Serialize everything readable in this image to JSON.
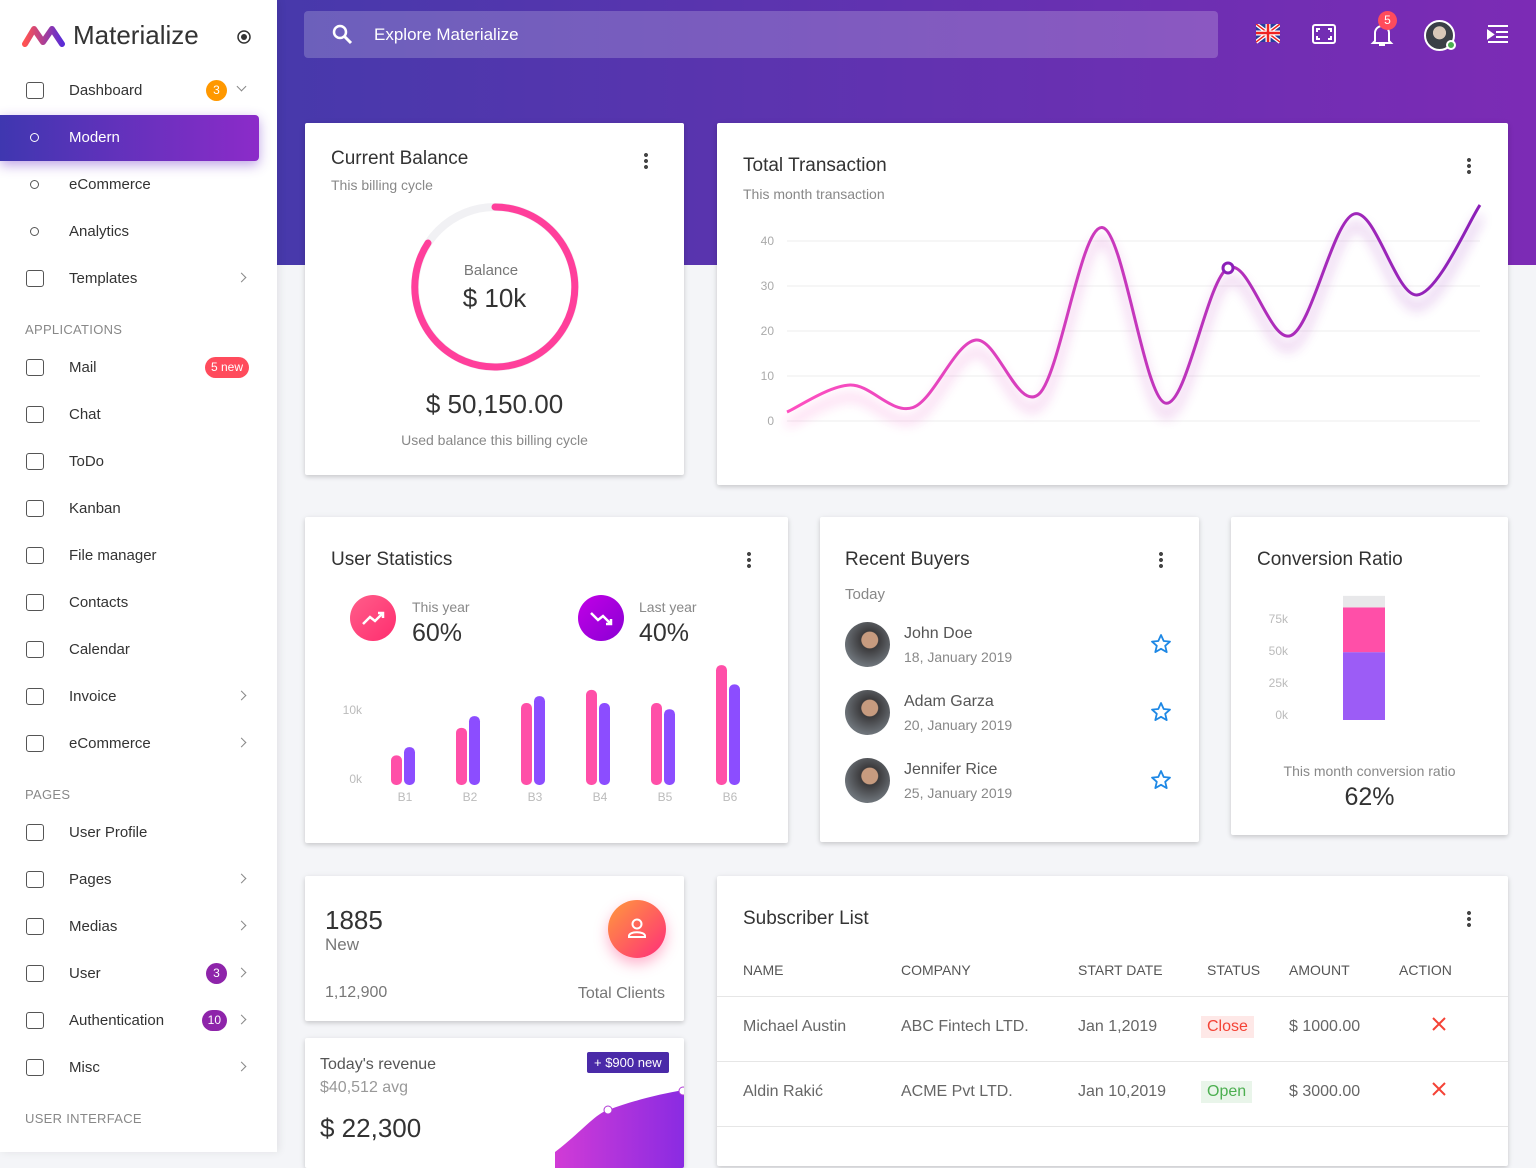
{
  "sidebar": {
    "brand": "Materialize",
    "nav": [
      {
        "label": "Dashboard",
        "badge": "3",
        "badge_color": "#ff9800",
        "arrow": "down"
      },
      {
        "label": "Modern",
        "sub": true,
        "active": true
      },
      {
        "label": "eCommerce",
        "sub": true
      },
      {
        "label": "Analytics",
        "sub": true
      },
      {
        "label": "Templates",
        "arrow": "right"
      },
      {
        "heading": "APPLICATIONS"
      },
      {
        "label": "Mail",
        "badge": "5 new",
        "badge_color": "#ff4b5c"
      },
      {
        "label": "Chat"
      },
      {
        "label": "ToDo"
      },
      {
        "label": "Kanban"
      },
      {
        "label": "File manager"
      },
      {
        "label": "Contacts"
      },
      {
        "label": "Calendar"
      },
      {
        "label": "Invoice",
        "arrow": "right"
      },
      {
        "label": "eCommerce",
        "arrow": "right"
      },
      {
        "heading": "PAGES"
      },
      {
        "label": "User Profile"
      },
      {
        "label": "Pages",
        "arrow": "right"
      },
      {
        "label": "Medias",
        "arrow": "right"
      },
      {
        "label": "User",
        "badge": "3",
        "badge_color": "#8e24aa",
        "arrow": "right"
      },
      {
        "label": "Authentication",
        "badge": "10",
        "badge_color": "#8e24aa",
        "arrow": "right"
      },
      {
        "label": "Misc",
        "arrow": "right"
      },
      {
        "heading": "USER INTERFACE"
      }
    ]
  },
  "header": {
    "search": "Explore Materialize",
    "notifications": "5"
  },
  "balance": {
    "title": "Current Balance",
    "subtitle": "This billing cycle",
    "gauge_label": "Balance",
    "gauge_value": "$ 10k",
    "amount": "$ 50,150.00",
    "caption": "Used balance this billing cycle"
  },
  "transaction": {
    "title": "Total Transaction",
    "subtitle": "This month transaction",
    "values": [
      2,
      8,
      3,
      18,
      6,
      43,
      4,
      34,
      19,
      46,
      28,
      48
    ],
    "ylim": [
      0,
      50
    ],
    "yticks": [
      0,
      10,
      20,
      30,
      40
    ],
    "marker": 7,
    "colors": [
      "#ff4fc0",
      "#8b1fb8"
    ]
  },
  "user_statistics": {
    "title": "User Statistics",
    "this_year_label": "This year",
    "this_year": "60%",
    "last_year_label": "Last year",
    "last_year": "40%",
    "categories": [
      "B1",
      "B2",
      "B3",
      "B4",
      "B5",
      "B6"
    ],
    "ylim": [
      0,
      18
    ],
    "yticks": [
      {
        "value": 0,
        "label": "0k"
      },
      {
        "value": 10,
        "label": "10k"
      }
    ],
    "series": [
      {
        "color": "#ff4fa8",
        "values": [
          4.3,
          8.3,
          11.9,
          13.8,
          11.9,
          17.4
        ]
      },
      {
        "color": "#8c4dff",
        "values": [
          5.5,
          10,
          12.9,
          11.9,
          11,
          14.6
        ]
      }
    ]
  },
  "recent_buyers": {
    "title": "Recent Buyers",
    "subtitle": "Today",
    "buyers": [
      {
        "name": "John Doe",
        "date": "18, January 2019"
      },
      {
        "name": "Adam Garza",
        "date": "20, January 2019"
      },
      {
        "name": "Jennifer Rice",
        "date": "25, January 2019"
      }
    ]
  },
  "conversion": {
    "title": "Conversion Ratio",
    "ylim": [
      0,
      100
    ],
    "yticks": [
      {
        "value": 0,
        "label": "0k"
      },
      {
        "value": 25,
        "label": "25k"
      },
      {
        "value": 50,
        "label": "50k"
      },
      {
        "value": 75,
        "label": "75k"
      }
    ],
    "segments": [
      {
        "color": "#9c5cf6",
        "value": 53
      },
      {
        "color": "#ff4fa8",
        "value": 35
      },
      {
        "color": "#e8e8ea",
        "value": 9
      }
    ],
    "caption": "This month conversion ratio",
    "ratio": "62%"
  },
  "clients": {
    "count": "1885",
    "count_label": "New",
    "total": "1,12,900",
    "total_label": "Total Clients"
  },
  "revenue": {
    "title": "Today's revenue",
    "avg": "$40,512 avg",
    "amount": "$ 22,300",
    "badge": "+ $900 new"
  },
  "subscribers": {
    "title": "Subscriber List",
    "columns": [
      "NAME",
      "COMPANY",
      "START DATE",
      "STATUS",
      "AMOUNT",
      "ACTION"
    ],
    "rows": [
      {
        "name": "Michael Austin",
        "company": "ABC Fintech LTD.",
        "date": "Jan 1,2019",
        "status": "Close",
        "status_color": "#f44336",
        "amount": "$ 1000.00"
      },
      {
        "name": "Aldin Rakić",
        "company": "ACME Pvt LTD.",
        "date": "Jan 10,2019",
        "status": "Open",
        "status_color": "#4caf50",
        "amount": "$ 3000.00"
      }
    ]
  }
}
